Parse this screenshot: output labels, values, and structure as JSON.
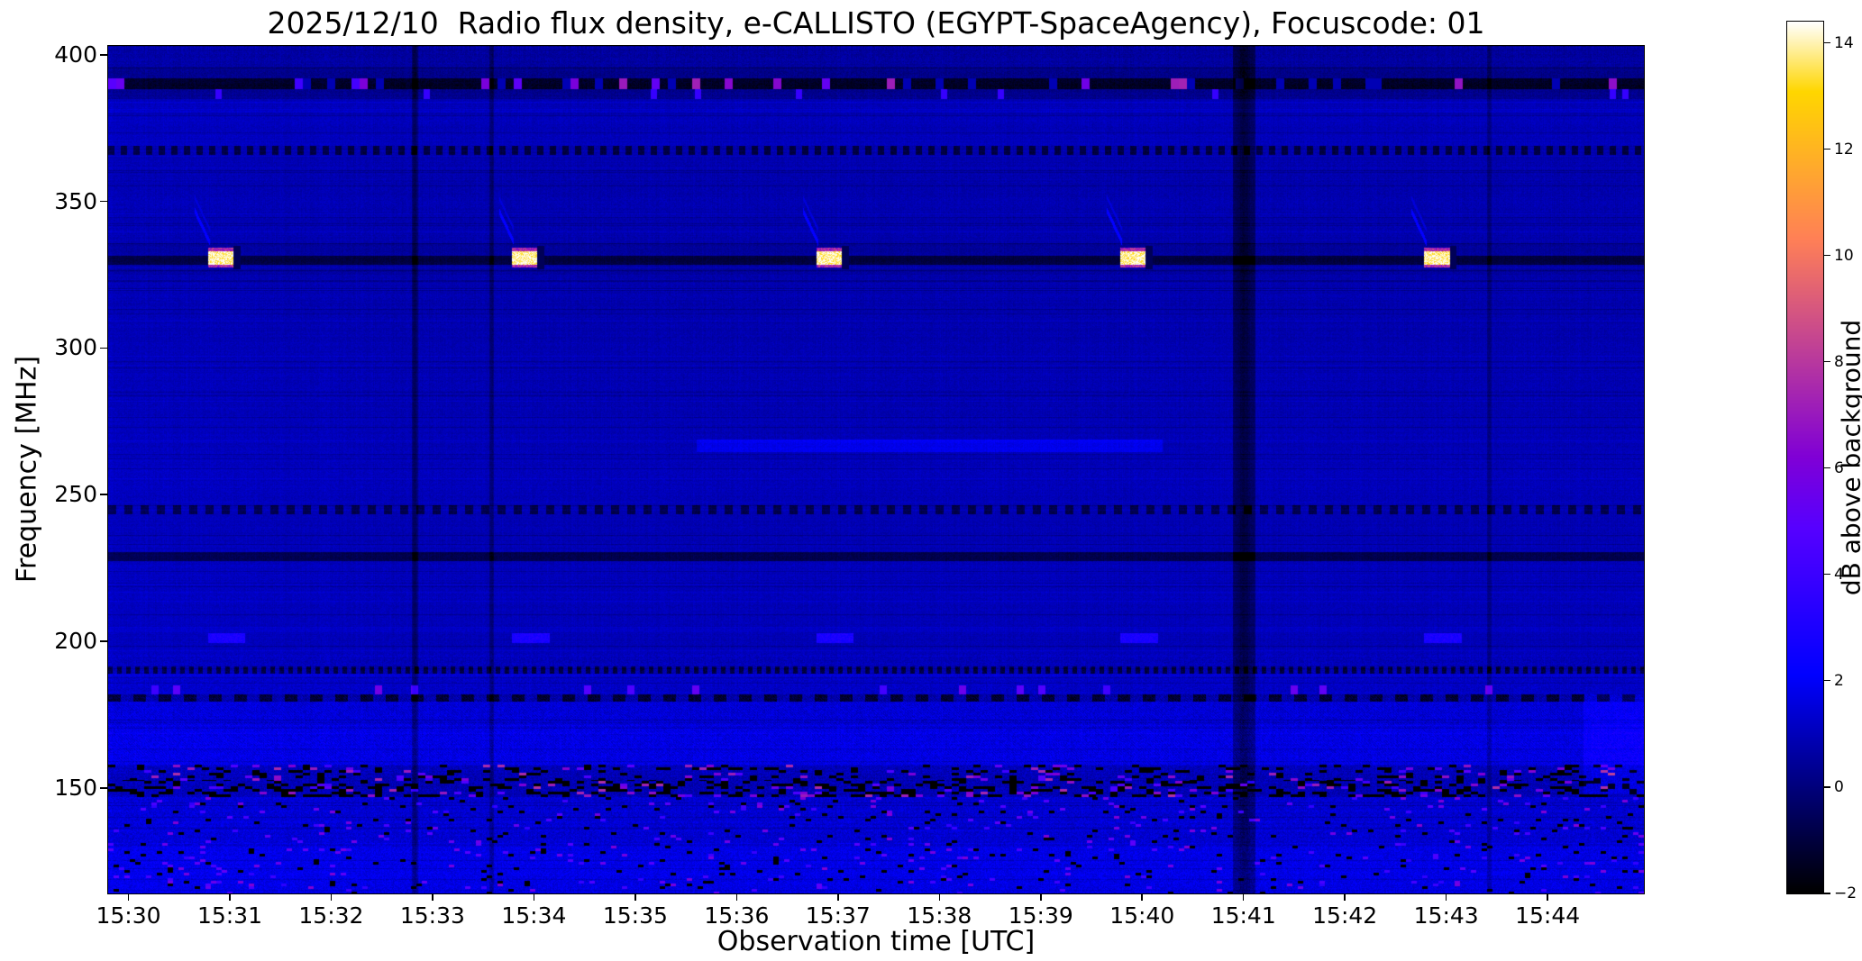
{
  "chart_data": {
    "type": "heatmap",
    "title": "2025/12/10  Radio flux density, e-CALLISTO (EGYPT-SpaceAgency), Focuscode: 01",
    "xlabel": "Observation time [UTC]",
    "ylabel": "Frequency [MHz]",
    "colorbar_label": "dB above background",
    "colormap": "gnuplot2",
    "value_range": [
      -2,
      14.4
    ],
    "freq_range_mhz": [
      114,
      403
    ],
    "time_range_min": [
      29.8,
      44.95
    ],
    "x_ticks": [
      {
        "label": "15:30",
        "minute": 30
      },
      {
        "label": "15:31",
        "minute": 31
      },
      {
        "label": "15:32",
        "minute": 32
      },
      {
        "label": "15:33",
        "minute": 33
      },
      {
        "label": "15:34",
        "minute": 34
      },
      {
        "label": "15:35",
        "minute": 35
      },
      {
        "label": "15:36",
        "minute": 36
      },
      {
        "label": "15:37",
        "minute": 37
      },
      {
        "label": "15:38",
        "minute": 38
      },
      {
        "label": "15:39",
        "minute": 39
      },
      {
        "label": "15:40",
        "minute": 40
      },
      {
        "label": "15:41",
        "minute": 41
      },
      {
        "label": "15:42",
        "minute": 42
      },
      {
        "label": "15:43",
        "minute": 43
      },
      {
        "label": "15:44",
        "minute": 44
      }
    ],
    "y_ticks": [
      {
        "label": "400",
        "mhz": 400
      },
      {
        "label": "350",
        "mhz": 350
      },
      {
        "label": "300",
        "mhz": 300
      },
      {
        "label": "250",
        "mhz": 250
      },
      {
        "label": "200",
        "mhz": 200
      },
      {
        "label": "150",
        "mhz": 150
      }
    ],
    "colorbar_ticks": [
      {
        "label": "−2",
        "value": -2
      },
      {
        "label": "0",
        "value": 0
      },
      {
        "label": "2",
        "value": 2
      },
      {
        "label": "4",
        "value": 4
      },
      {
        "label": "6",
        "value": 6
      },
      {
        "label": "8",
        "value": 8
      },
      {
        "label": "10",
        "value": 10
      },
      {
        "label": "12",
        "value": 12
      },
      {
        "label": "14",
        "value": 14
      }
    ],
    "features": {
      "background_db": 0.8,
      "calibration_bursts": {
        "minutes": [
          31,
          34,
          37,
          40,
          43
        ],
        "start_offset_min": -0.22,
        "duration_min": 0.25,
        "core_freq_mhz": [
          328.5,
          333
        ],
        "fringe_freq_mhz": [
          327.5,
          334.5
        ],
        "core_db": 13,
        "drift_tail_from_mhz": 347,
        "drift_tail_to_mhz": 336,
        "secondary_freq_mhz": [
          199.5,
          203
        ],
        "secondary_db": 2.8
      },
      "rfi_lines_mhz": {
        "solid_dark": [
          330,
          228
        ],
        "dashed": [
          245,
          179
        ],
        "dotted": [
          367,
          190
        ],
        "burst_row": 390
      },
      "vertical_interference": [
        {
          "minute": 32.82,
          "half_width_min": 0.03,
          "depth_db": 1.5
        },
        {
          "minute": 33.58,
          "half_width_min": 0.025,
          "depth_db": 1.2
        },
        {
          "minute": 41.0,
          "half_width_min": 0.11,
          "depth_db": 1.9
        },
        {
          "minute": 43.42,
          "half_width_min": 0.025,
          "depth_db": 0.9
        }
      ],
      "noisy_band_top_mhz": 182,
      "speckle_band_mhz": [
        147,
        158
      ],
      "faint_streak": {
        "freq_mhz": [
          264.5,
          269
        ],
        "time_min": [
          35.6,
          40.2
        ],
        "db": 1.6
      },
      "right_edge_patch": {
        "time_min": [
          44.35,
          44.95
        ],
        "freq_mhz": [
          148,
          182
        ],
        "db": 0.7
      },
      "left_brightening": {
        "until_min": 33.2,
        "db_per_min": 0.05
      }
    }
  }
}
